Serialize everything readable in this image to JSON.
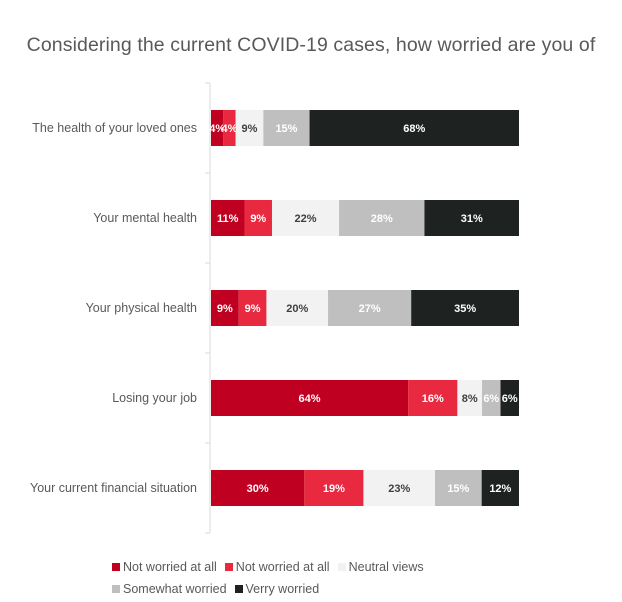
{
  "chart_data": {
    "type": "bar",
    "orientation": "horizontal",
    "stacked": true,
    "title": "Considering the current COVID-19 cases, how worried are you of",
    "categories": [
      "The health of your loved ones",
      "Your mental health",
      "Your physical health",
      "Losing your job",
      "Your current financial situation"
    ],
    "series": [
      {
        "name": "Not worried at all",
        "color": "#c00020",
        "label_color": "#ffffff",
        "values": [
          4,
          11,
          9,
          64,
          30
        ]
      },
      {
        "name": "Not worried at all",
        "color": "#e8293f",
        "label_color": "#ffffff",
        "values": [
          4,
          9,
          9,
          16,
          19
        ]
      },
      {
        "name": "Neutral views",
        "color": "#f2f2f2",
        "label_color": "#404040",
        "values": [
          9,
          22,
          20,
          8,
          23
        ]
      },
      {
        "name": "Somewhat worried",
        "color": "#bfbfbf",
        "label_color": "#ffffff",
        "values": [
          15,
          28,
          27,
          6,
          15
        ]
      },
      {
        "name": "Verry worried",
        "color": "#1e2221",
        "label_color": "#ffffff",
        "values": [
          68,
          31,
          35,
          6,
          12
        ]
      }
    ],
    "xlabel": "",
    "ylabel": "",
    "legend_position": "bottom",
    "grid": false
  }
}
